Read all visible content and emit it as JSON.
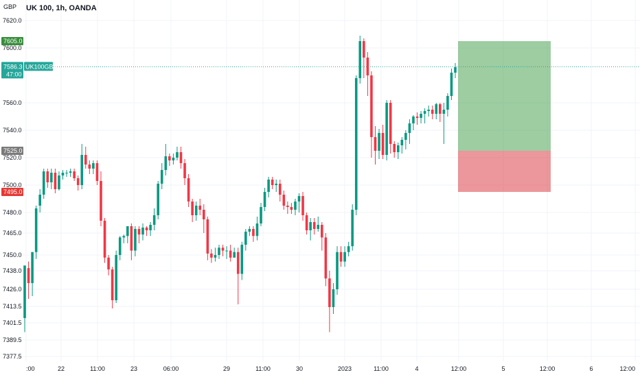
{
  "header": {
    "title": "UK 100, 1h, OANDA",
    "currency": "GBP"
  },
  "colors": {
    "up": "#089981",
    "down": "#f23645",
    "target_fill": "#5bab62",
    "stop_fill": "#e06066",
    "target_label": "#388e3c",
    "stop_label": "#e53935",
    "entry_label": "#7a7a7a",
    "price_line": "#26a69a"
  },
  "chart_data": {
    "type": "candlestick",
    "symbol": "UK100GBP",
    "y_ticks": [
      "7620.0",
      "7600.0",
      "7560.0",
      "7540.0",
      "7520.0",
      "7500.0",
      "7480.0",
      "7465.0",
      "7450.0",
      "7438.0",
      "7426.0",
      "7413.5",
      "7401.5",
      "7389.5",
      "7377.5"
    ],
    "x_ticks": [
      ":00",
      "22",
      "11:00",
      "23",
      "06:00",
      "29",
      "11:00",
      "30",
      "2023",
      "11:00",
      "4",
      "12:00",
      "5",
      "12:00",
      "6",
      "12:00"
    ],
    "position": {
      "target_price": "7605.0",
      "entry_price": "7525.0",
      "stop_price": "7495.0"
    },
    "last_price": "7586.3",
    "countdown": "47:00",
    "candles": [
      [
        7405,
        7442,
        7395,
        7440
      ],
      [
        7440,
        7430,
        7419,
        7445
      ],
      [
        7430,
        7452,
        7421,
        7452
      ],
      [
        7452,
        7483,
        7447,
        7485
      ],
      [
        7485,
        7493,
        7480,
        7497
      ],
      [
        7493,
        7510,
        7490,
        7512
      ],
      [
        7510,
        7502,
        7498,
        7512
      ],
      [
        7502,
        7509,
        7497,
        7512
      ],
      [
        7509,
        7497,
        7494,
        7512
      ],
      [
        7497,
        7507,
        7496,
        7510
      ],
      [
        7507,
        7509,
        7504,
        7511
      ],
      [
        7509,
        7509,
        7506,
        7511
      ],
      [
        7509,
        7510,
        7506,
        7512
      ],
      [
        7510,
        7505,
        7503,
        7512
      ],
      [
        7505,
        7500,
        7496,
        7507
      ],
      [
        7500,
        7522,
        7497,
        7530
      ],
      [
        7522,
        7515,
        7512,
        7528
      ],
      [
        7515,
        7512,
        7508,
        7518
      ],
      [
        7512,
        7516,
        7508,
        7518
      ],
      [
        7516,
        7503,
        7500,
        7518
      ],
      [
        7503,
        7474,
        7470,
        7510
      ],
      [
        7474,
        7448,
        7444,
        7476
      ],
      [
        7448,
        7439,
        7435,
        7450
      ],
      [
        7439,
        7418,
        7412,
        7441
      ],
      [
        7418,
        7450,
        7416,
        7453
      ],
      [
        7450,
        7462,
        7446,
        7463
      ],
      [
        7462,
        7463,
        7458,
        7464
      ],
      [
        7463,
        7470,
        7458,
        7470
      ],
      [
        7470,
        7453,
        7446,
        7472
      ],
      [
        7453,
        7468,
        7449,
        7470
      ],
      [
        7468,
        7464,
        7458,
        7470
      ],
      [
        7464,
        7469,
        7460,
        7472
      ],
      [
        7469,
        7467,
        7463,
        7470
      ],
      [
        7467,
        7471,
        7463,
        7473
      ],
      [
        7471,
        7478,
        7467,
        7483
      ],
      [
        7478,
        7501,
        7475,
        7503
      ],
      [
        7501,
        7511,
        7497,
        7516
      ],
      [
        7511,
        7521,
        7507,
        7530
      ],
      [
        7521,
        7518,
        7514,
        7523
      ],
      [
        7518,
        7520,
        7515,
        7523
      ],
      [
        7520,
        7524,
        7518,
        7528
      ],
      [
        7524,
        7516,
        7512,
        7528
      ],
      [
        7516,
        7505,
        7500,
        7519
      ],
      [
        7505,
        7488,
        7484,
        7508
      ],
      [
        7488,
        7478,
        7473,
        7490
      ],
      [
        7478,
        7485,
        7474,
        7488
      ],
      [
        7485,
        7482,
        7478,
        7490
      ],
      [
        7482,
        7475,
        7465,
        7486
      ],
      [
        7475,
        7451,
        7446,
        7477
      ],
      [
        7451,
        7448,
        7444,
        7454
      ],
      [
        7448,
        7450,
        7445,
        7455
      ],
      [
        7450,
        7455,
        7447,
        7457
      ],
      [
        7455,
        7453,
        7449,
        7457
      ],
      [
        7453,
        7453,
        7447,
        7456
      ],
      [
        7453,
        7448,
        7445,
        7457
      ],
      [
        7448,
        7452,
        7448,
        7455
      ],
      [
        7452,
        7436,
        7415,
        7455
      ],
      [
        7436,
        7457,
        7432,
        7459
      ],
      [
        7457,
        7466,
        7453,
        7468
      ],
      [
        7466,
        7468,
        7463,
        7470
      ],
      [
        7468,
        7463,
        7459,
        7470
      ],
      [
        7463,
        7472,
        7460,
        7477
      ],
      [
        7472,
        7484,
        7470,
        7487
      ],
      [
        7484,
        7495,
        7481,
        7498
      ],
      [
        7495,
        7504,
        7491,
        7506
      ],
      [
        7504,
        7500,
        7497,
        7506
      ],
      [
        7500,
        7501,
        7495,
        7504
      ],
      [
        7501,
        7493,
        7488,
        7504
      ],
      [
        7493,
        7485,
        7482,
        7496
      ],
      [
        7485,
        7484,
        7479,
        7488
      ],
      [
        7484,
        7482,
        7479,
        7487
      ],
      [
        7482,
        7488,
        7478,
        7490
      ],
      [
        7488,
        7492,
        7480,
        7494
      ],
      [
        7492,
        7478,
        7474,
        7495
      ],
      [
        7478,
        7467,
        7464,
        7480
      ],
      [
        7467,
        7473,
        7460,
        7476
      ],
      [
        7473,
        7468,
        7464,
        7476
      ],
      [
        7468,
        7471,
        7466,
        7477
      ],
      [
        7471,
        7462,
        7453,
        7473
      ],
      [
        7462,
        7433,
        7428,
        7465
      ],
      [
        7433,
        7413,
        7395,
        7438
      ],
      [
        7413,
        7426,
        7408,
        7430
      ],
      [
        7426,
        7452,
        7422,
        7456
      ],
      [
        7452,
        7445,
        7441,
        7456
      ],
      [
        7445,
        7452,
        7441,
        7456
      ],
      [
        7452,
        7456,
        7449,
        7459
      ],
      [
        7456,
        7482,
        7453,
        7486
      ],
      [
        7482,
        7578,
        7478,
        7580
      ],
      [
        7578,
        7605,
        7574,
        7609
      ],
      [
        7605,
        7593,
        7578,
        7607
      ],
      [
        7593,
        7580,
        7565,
        7597
      ],
      [
        7580,
        7535,
        7520,
        7583
      ],
      [
        7535,
        7525,
        7515,
        7543
      ],
      [
        7525,
        7538,
        7519,
        7541
      ],
      [
        7538,
        7522,
        7519,
        7544
      ],
      [
        7522,
        7560,
        7518,
        7562
      ],
      [
        7560,
        7530,
        7523,
        7562
      ],
      [
        7530,
        7524,
        7520,
        7532
      ],
      [
        7524,
        7529,
        7519,
        7531
      ],
      [
        7529,
        7533,
        7523,
        7535
      ],
      [
        7533,
        7538,
        7526,
        7540
      ],
      [
        7538,
        7545,
        7530,
        7548
      ],
      [
        7545,
        7550,
        7540,
        7551
      ],
      [
        7550,
        7549,
        7544,
        7553
      ],
      [
        7549,
        7552,
        7545,
        7554
      ],
      [
        7552,
        7554,
        7545,
        7556
      ],
      [
        7554,
        7555,
        7550,
        7558
      ],
      [
        7555,
        7552,
        7548,
        7558
      ],
      [
        7552,
        7559,
        7548,
        7560
      ],
      [
        7559,
        7552,
        7546,
        7560
      ],
      [
        7552,
        7555,
        7530,
        7560
      ],
      [
        7555,
        7565,
        7550,
        7567
      ],
      [
        7565,
        7582,
        7562,
        7585
      ],
      [
        7582,
        7586,
        7578,
        7589
      ]
    ]
  }
}
